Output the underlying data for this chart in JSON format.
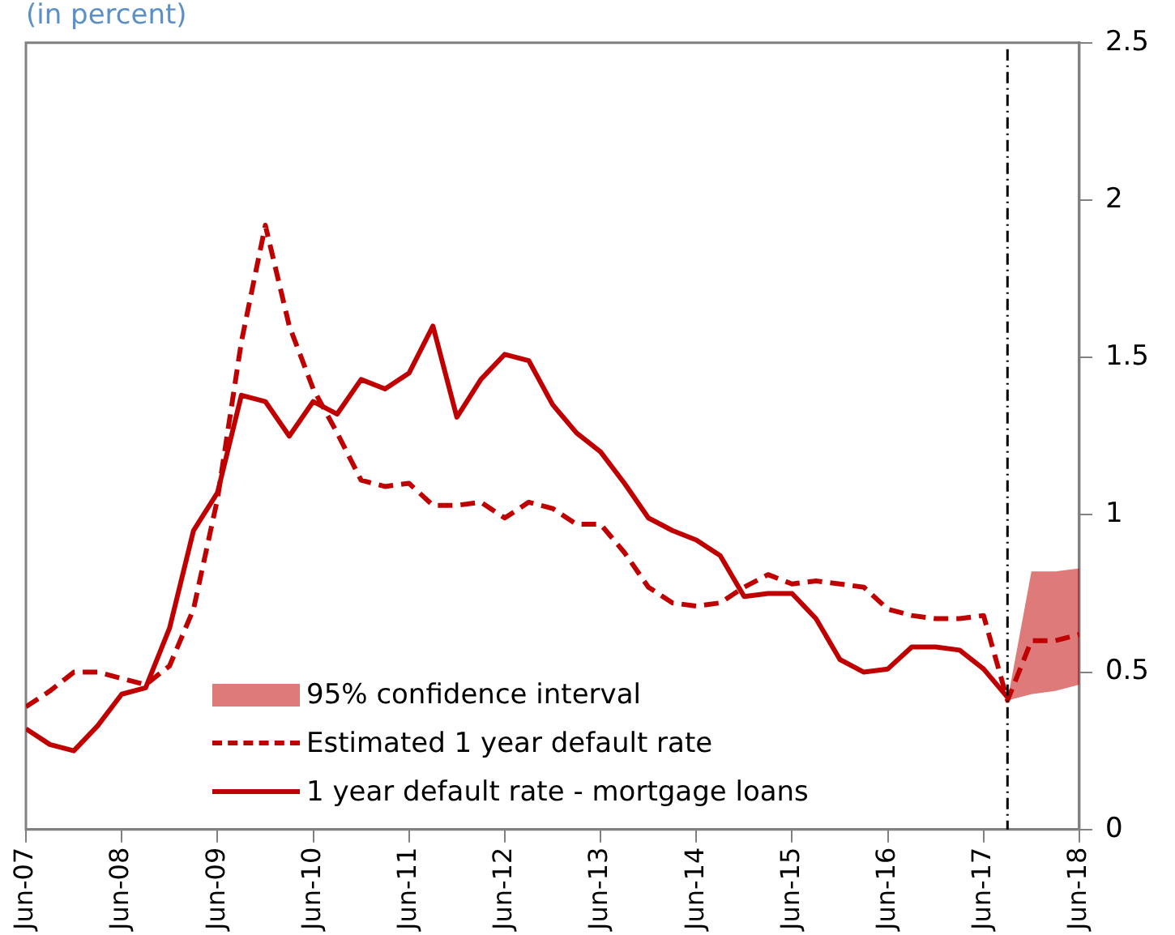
{
  "chart_data": {
    "type": "line",
    "title": "(in percent)",
    "x": [
      "2007-06",
      "2007-09",
      "2007-12",
      "2008-03",
      "2008-06",
      "2008-09",
      "2008-12",
      "2009-03",
      "2009-06",
      "2009-09",
      "2009-12",
      "2010-03",
      "2010-06",
      "2010-09",
      "2010-12",
      "2011-03",
      "2011-06",
      "2011-09",
      "2011-12",
      "2012-03",
      "2012-06",
      "2012-09",
      "2012-12",
      "2013-03",
      "2013-06",
      "2013-09",
      "2013-12",
      "2014-03",
      "2014-06",
      "2014-09",
      "2014-12",
      "2015-03",
      "2015-06",
      "2015-09",
      "2015-12",
      "2016-03",
      "2016-06",
      "2016-09",
      "2016-12",
      "2017-03",
      "2017-06",
      "2017-09",
      "2017-12",
      "2018-03",
      "2018-06"
    ],
    "series": [
      {
        "name": "Estimated 1 year default rate",
        "type": "line",
        "line_style": "dashed",
        "color": "#c00000",
        "values": [
          0.39,
          0.44,
          0.5,
          0.5,
          0.48,
          0.46,
          0.52,
          0.7,
          1.05,
          1.55,
          1.92,
          1.6,
          1.4,
          1.26,
          1.11,
          1.09,
          1.1,
          1.03,
          1.03,
          1.04,
          0.99,
          1.04,
          1.02,
          0.97,
          0.97,
          0.88,
          0.77,
          0.72,
          0.71,
          0.72,
          0.77,
          0.81,
          0.78,
          0.79,
          0.78,
          0.77,
          0.7,
          0.68,
          0.67,
          0.67,
          0.68,
          0.41,
          0.6,
          0.6,
          0.62
        ],
        "lower": [
          null,
          null,
          null,
          null,
          null,
          null,
          null,
          null,
          null,
          null,
          null,
          null,
          null,
          null,
          null,
          null,
          null,
          null,
          null,
          null,
          null,
          null,
          null,
          null,
          null,
          null,
          null,
          null,
          null,
          null,
          null,
          null,
          null,
          null,
          null,
          null,
          null,
          null,
          null,
          null,
          null,
          0.41,
          0.43,
          0.44,
          0.46
        ],
        "upper": [
          null,
          null,
          null,
          null,
          null,
          null,
          null,
          null,
          null,
          null,
          null,
          null,
          null,
          null,
          null,
          null,
          null,
          null,
          null,
          null,
          null,
          null,
          null,
          null,
          null,
          null,
          null,
          null,
          null,
          null,
          null,
          null,
          null,
          null,
          null,
          null,
          null,
          null,
          null,
          null,
          null,
          0.41,
          0.82,
          0.82,
          0.83
        ]
      },
      {
        "name": "1 year default rate - mortgage loans",
        "type": "line",
        "line_style": "solid",
        "color": "#c00000",
        "values": [
          0.32,
          0.27,
          0.25,
          0.33,
          0.43,
          0.45,
          0.64,
          0.95,
          1.07,
          1.38,
          1.36,
          1.25,
          1.36,
          1.32,
          1.43,
          1.4,
          1.45,
          1.6,
          1.31,
          1.43,
          1.51,
          1.49,
          1.35,
          1.26,
          1.2,
          1.1,
          0.99,
          0.95,
          0.92,
          0.87,
          0.74,
          0.75,
          0.75,
          0.67,
          0.54,
          0.5,
          0.51,
          0.58,
          0.58,
          0.57,
          0.51,
          0.42,
          null,
          null,
          null
        ]
      }
    ],
    "annotations": [
      "95% confidence interval"
    ],
    "xlim": [
      "2007-06",
      "2018-06"
    ],
    "xticks": [
      {
        "value": "2007-06",
        "label": "Jun-07"
      },
      {
        "value": "2008-06",
        "label": "Jun-08"
      },
      {
        "value": "2009-06",
        "label": "Jun-09"
      },
      {
        "value": "2010-06",
        "label": "Jun-10"
      },
      {
        "value": "2011-06",
        "label": "Jun-11"
      },
      {
        "value": "2012-06",
        "label": "Jun-12"
      },
      {
        "value": "2013-06",
        "label": "Jun-13"
      },
      {
        "value": "2014-06",
        "label": "Jun-14"
      },
      {
        "value": "2015-06",
        "label": "Jun-15"
      },
      {
        "value": "2016-06",
        "label": "Jun-16"
      },
      {
        "value": "2017-06",
        "label": "Jun-17"
      },
      {
        "value": "2018-06",
        "label": "Jun-18"
      }
    ],
    "ylim": [
      0,
      2.5
    ],
    "yticks": [
      0,
      0.5,
      1,
      1.5,
      2,
      2.5
    ],
    "ref_lines": [
      {
        "axis": "x",
        "value": "2017-09",
        "color": "#000000",
        "line_style": "dashed"
      }
    ],
    "grid": false,
    "legend": "bottom left",
    "marker": "none"
  }
}
